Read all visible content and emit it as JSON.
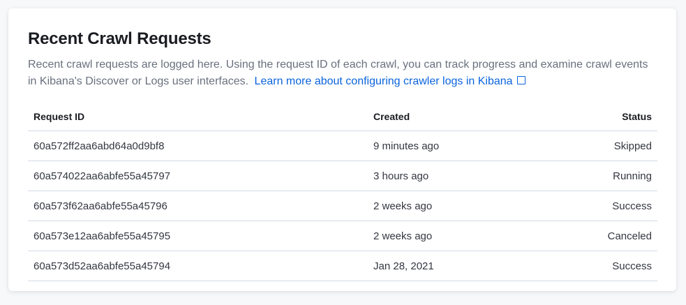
{
  "title": "Recent Crawl Requests",
  "description": "Recent crawl requests are logged here. Using the request ID of each crawl, you can track progress and examine crawl events in Kibana's Discover or Logs user interfaces.",
  "link": {
    "label": "Learn more about configuring crawler logs in Kibana",
    "icon": "external-link-icon"
  },
  "table": {
    "columns": [
      "Request ID",
      "Created",
      "Status"
    ],
    "rows": [
      {
        "id": "60a572ff2aa6abd64a0d9bf8",
        "created": "9 minutes ago",
        "status": "Skipped"
      },
      {
        "id": "60a574022aa6abfe55a45797",
        "created": "3 hours ago",
        "status": "Running"
      },
      {
        "id": "60a573f62aa6abfe55a45796",
        "created": "2 weeks ago",
        "status": "Success"
      },
      {
        "id": "60a573e12aa6abfe55a45795",
        "created": "2 weeks ago",
        "status": "Canceled"
      },
      {
        "id": "60a573d52aa6abfe55a45794",
        "created": "Jan 28, 2021",
        "status": "Success"
      }
    ]
  },
  "colors": {
    "link": "#0b64dd",
    "text_subdued": "#69707d",
    "border": "#d3dae6"
  }
}
